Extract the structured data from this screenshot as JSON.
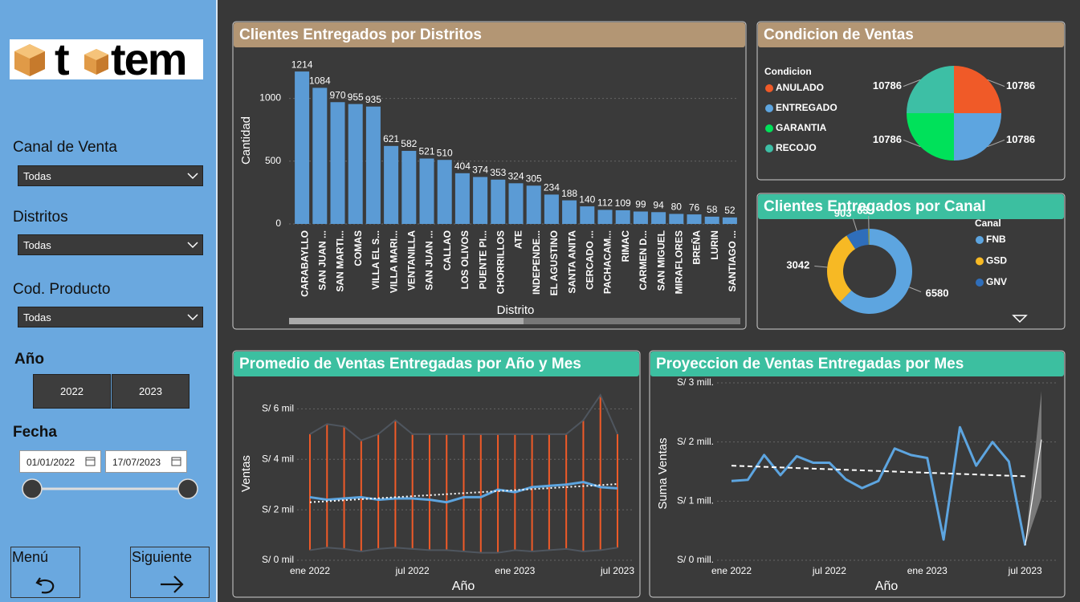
{
  "sidebar": {
    "logo": [
      "t",
      "tem"
    ],
    "filters": [
      {
        "label": "Canal de Venta",
        "value": "Todas"
      },
      {
        "label": "Distritos",
        "value": "Todas"
      },
      {
        "label": "Cod. Producto",
        "value": "Todas"
      }
    ],
    "year": {
      "label": "Año",
      "options": [
        "2022",
        "2023"
      ]
    },
    "date": {
      "label": "Fecha",
      "start": "01/01/2022",
      "end": "17/07/2023"
    },
    "nav": {
      "back": "Menú",
      "next": "Siguiente"
    }
  },
  "chart_data": [
    {
      "type": "bar",
      "title": "Clientes Entregados por Distritos",
      "x_label": "Distrito",
      "y_label": "Cantidad",
      "categories": [
        "CARABAYLLO",
        "SAN JUAN ...",
        "SAN MARTI...",
        "COMAS",
        "VILLA EL S...",
        "VILLA MARI...",
        "VENTANILLA",
        "SAN JUAN ...",
        "CALLAO",
        "LOS OLIVOS",
        "PUENTE PI...",
        "CHORRILLOS",
        "ATE",
        "INDEPENDE...",
        "EL AGUSTINO",
        "SANTA ANITA",
        "CERCADO ...",
        "PACHACAM...",
        "RIMAC",
        "CARMEN D...",
        "SAN MIGUEL",
        "MIRAFLORES",
        "BREÑA",
        "LURIN",
        "SANTIAGO ..."
      ],
      "values": [
        1214,
        1084,
        970,
        955,
        935,
        621,
        582,
        521,
        510,
        404,
        374,
        353,
        324,
        305,
        234,
        188,
        140,
        112,
        109,
        99,
        94,
        80,
        76,
        58,
        52
      ],
      "color": "#5b9bd5",
      "ylim": [
        0,
        1400
      ],
      "yticks": [
        0,
        500,
        1000
      ],
      "grid": true
    },
    {
      "type": "pie",
      "title": "Condicion de Ventas",
      "legend_title": "Condicion",
      "categories": [
        "ANULADO",
        "ENTREGADO",
        "GARANTIA",
        "RECOJO"
      ],
      "values": [
        10786,
        10786,
        10786,
        10786
      ],
      "colors": [
        "#f05a28",
        "#5da5e0",
        "#00e15a",
        "#3dbfa5"
      ],
      "legend": "left"
    },
    {
      "type": "donut",
      "title": "Clientes Entregados por Canal",
      "legend_title": "Canal",
      "categories": [
        "FNB",
        "GSD",
        "GNV",
        null
      ],
      "values": [
        6580,
        3042,
        903,
        63
      ],
      "colors": [
        "#5da5e0",
        "#f7b924",
        "#2f6eba",
        "#8c9a5b"
      ],
      "legend": "right"
    },
    {
      "type": "line",
      "title": "Promedio de Ventas Entregadas por Año y Mes",
      "x_label": "Año",
      "y_label": "Ventas",
      "x": [
        "2022-01",
        "2022-02",
        "2022-03",
        "2022-04",
        "2022-05",
        "2022-06",
        "2022-07",
        "2022-08",
        "2022-09",
        "2022-10",
        "2022-11",
        "2022-12",
        "2023-01",
        "2023-02",
        "2023-03",
        "2023-04",
        "2023-05",
        "2023-06",
        "2023-07"
      ],
      "xlim": [
        "2022-01",
        "2023-07"
      ],
      "xticks": [
        {
          "value": "2022-01",
          "label": "ene 2022"
        },
        {
          "value": "2022-07",
          "label": "jul 2022"
        },
        {
          "value": "2023-01",
          "label": "ene 2023"
        },
        {
          "value": "2023-07",
          "label": "jul 2023"
        }
      ],
      "ylim": [
        0,
        7000
      ],
      "yticks": [
        {
          "value": 0,
          "label": "S/ 0 mil"
        },
        {
          "value": 2000,
          "label": "S/ 2 mil"
        },
        {
          "value": 4000,
          "label": "S/ 4 mil"
        },
        {
          "value": 6000,
          "label": "S/ 6 mil"
        }
      ],
      "grid": true,
      "series": [
        {
          "style": "range",
          "color": "#f05a28",
          "edge_color": "#4f565f",
          "high": [
            5000,
            5400,
            5300,
            4750,
            5000,
            5550,
            5000,
            5000,
            5000,
            5000,
            5000,
            5000,
            5000,
            5000,
            5000,
            5000,
            5550,
            6550,
            5000
          ],
          "low": [
            400,
            500,
            450,
            350,
            450,
            500,
            450,
            400,
            400,
            350,
            300,
            300,
            400,
            350,
            400,
            450,
            350,
            400,
            500
          ]
        },
        {
          "style": "line",
          "color": "#5da5e0",
          "values": [
            2500,
            2400,
            2450,
            2500,
            2400,
            2450,
            2450,
            2400,
            2300,
            2500,
            2500,
            2800,
            2700,
            2900,
            2950,
            3000,
            3100,
            2900,
            2850
          ]
        },
        {
          "style": "dotted",
          "color": "#ffffff",
          "values": [
            2300,
            2340,
            2380,
            2420,
            2460,
            2500,
            2540,
            2580,
            2620,
            2660,
            2700,
            2740,
            2780,
            2820,
            2860,
            2900,
            2940,
            2980,
            3020
          ]
        }
      ]
    },
    {
      "type": "line",
      "title": "Proyeccion de Ventas Entregadas por Mes",
      "x_label": "Año",
      "y_label": "Suma Ventas",
      "x": [
        "2022-01",
        "2022-02",
        "2022-03",
        "2022-04",
        "2022-05",
        "2022-06",
        "2022-07",
        "2022-08",
        "2022-09",
        "2022-10",
        "2022-11",
        "2022-12",
        "2023-01",
        "2023-02",
        "2023-03",
        "2023-04",
        "2023-05",
        "2023-06",
        "2023-07",
        "2023-08"
      ],
      "xlim": [
        "2022-01",
        "2023-08"
      ],
      "xticks": [
        {
          "value": "2022-01",
          "label": "ene 2022"
        },
        {
          "value": "2022-07",
          "label": "jul 2022"
        },
        {
          "value": "2023-01",
          "label": "ene 2023"
        },
        {
          "value": "2023-07",
          "label": "jul 2023"
        }
      ],
      "ylim": [
        0,
        3000000
      ],
      "yticks": [
        {
          "value": 0,
          "label": "S/ 0 mill."
        },
        {
          "value": 1000000,
          "label": "S/ 1 mill."
        },
        {
          "value": 2000000,
          "label": "S/ 2 mill."
        },
        {
          "value": 3000000,
          "label": "S/ 3 mill."
        }
      ],
      "grid": true,
      "series": [
        {
          "style": "band",
          "color": "#7a7a7a",
          "upper": [
            null,
            null,
            null,
            null,
            null,
            null,
            null,
            null,
            null,
            null,
            null,
            null,
            null,
            null,
            null,
            null,
            null,
            null,
            250000,
            2860000
          ],
          "lower": [
            null,
            null,
            null,
            null,
            null,
            null,
            null,
            null,
            null,
            null,
            null,
            null,
            null,
            null,
            null,
            null,
            null,
            null,
            250000,
            1060000
          ]
        },
        {
          "style": "line",
          "color": "#5da5e0",
          "values": [
            1340000,
            1360000,
            1780000,
            1440000,
            1760000,
            1650000,
            1650000,
            1370000,
            1220000,
            1340000,
            1890000,
            1780000,
            1730000,
            350000,
            2250000,
            1600000,
            2000000,
            1670000,
            250000,
            null
          ]
        },
        {
          "style": "dashed",
          "color": "#ffffff",
          "values": [
            1600000,
            1590000,
            1580000,
            1570000,
            1560000,
            1550000,
            1540000,
            1530000,
            1520000,
            1510000,
            1500000,
            1490000,
            1480000,
            1470000,
            1460000,
            1450000,
            1440000,
            1430000,
            1420000,
            null
          ]
        },
        {
          "style": "thin",
          "color": "#ffffff",
          "values": [
            null,
            null,
            null,
            null,
            null,
            null,
            null,
            null,
            null,
            null,
            null,
            null,
            null,
            null,
            null,
            null,
            null,
            null,
            250000,
            2040000
          ]
        }
      ]
    }
  ]
}
